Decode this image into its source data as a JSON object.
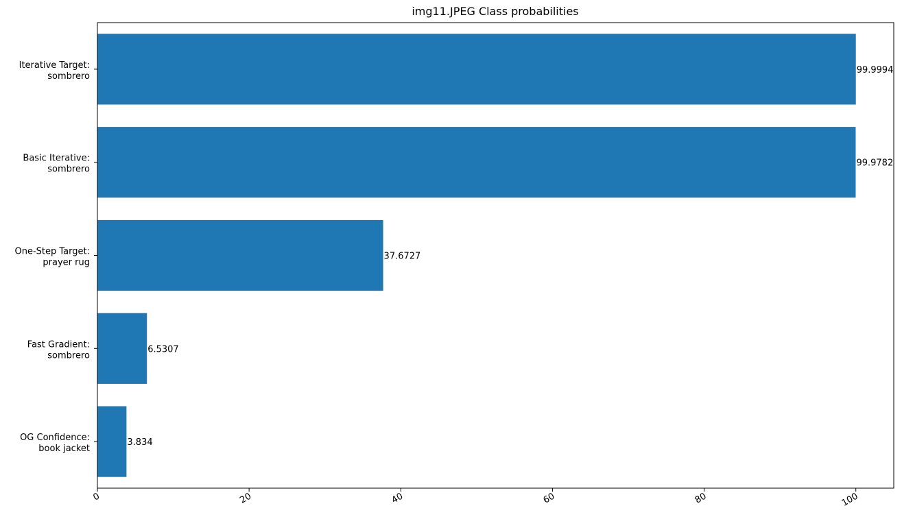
{
  "chart_data": {
    "type": "bar",
    "orientation": "horizontal",
    "title": "img11.JPEG Class probabilities",
    "xlabel": "",
    "ylabel": "",
    "xlim": [
      0,
      105
    ],
    "xticks": [
      0,
      20,
      40,
      60,
      80,
      100
    ],
    "xtick_labels": [
      "0",
      "20",
      "40",
      "60",
      "80",
      "100"
    ],
    "categories": [
      [
        "Iterative Target:",
        "sombrero"
      ],
      [
        "Basic Iterative:",
        "sombrero"
      ],
      [
        "One-Step Target:",
        "prayer rug"
      ],
      [
        "Fast Gradient:",
        "sombrero"
      ],
      [
        "OG Confidence:",
        "book jacket"
      ]
    ],
    "values": [
      99.9994,
      99.9782,
      37.6727,
      6.5307,
      3.834
    ],
    "value_labels": [
      "99.9994",
      "99.9782",
      "37.6727",
      "6.5307",
      "3.834"
    ],
    "bar_color": "#1f77b4",
    "grid": false,
    "legend": "none"
  }
}
